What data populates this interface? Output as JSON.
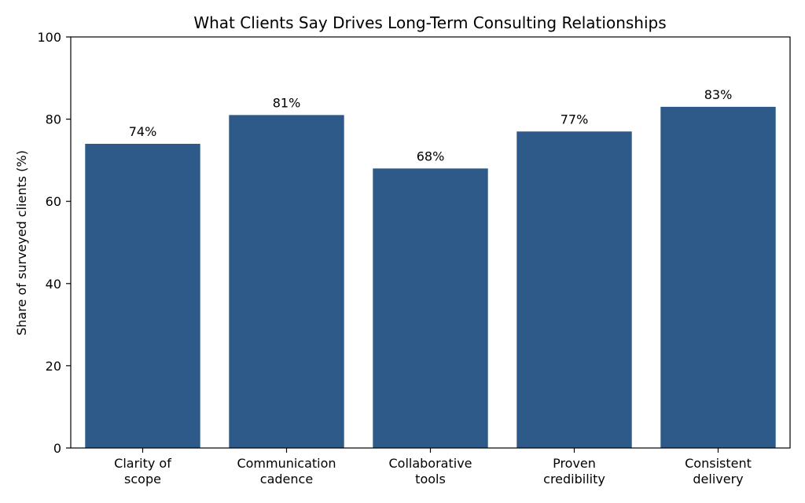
{
  "chart_data": {
    "type": "bar",
    "title": "What Clients Say Drives Long-Term Consulting Relationships",
    "xlabel": "",
    "ylabel": "Share of surveyed clients (%)",
    "ylim": [
      0,
      100
    ],
    "yticks": [
      0,
      20,
      40,
      60,
      80,
      100
    ],
    "grid": false,
    "legend": "none",
    "categories": [
      [
        "Clarity of",
        "scope"
      ],
      [
        "Communication",
        "cadence"
      ],
      [
        "Collaborative",
        "tools"
      ],
      [
        "Proven",
        "credibility"
      ],
      [
        "Consistent",
        "delivery"
      ]
    ],
    "values": [
      74,
      81,
      68,
      77,
      83
    ],
    "data_labels": [
      "74%",
      "81%",
      "68%",
      "77%",
      "83%"
    ],
    "bar_color": "#2d5a88"
  }
}
